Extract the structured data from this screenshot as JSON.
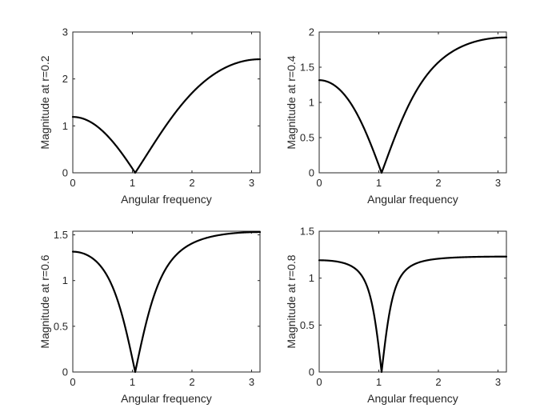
{
  "chart_data": [
    {
      "type": "line",
      "r": 0.2,
      "xlabel": "Angular frequency",
      "ylabel": "Magnitude at r=0.2",
      "xlim": [
        0,
        3.14159
      ],
      "ylim": [
        0,
        3
      ],
      "xticks": [
        0,
        1,
        2,
        3
      ],
      "yticks": [
        0,
        1,
        2,
        3
      ],
      "xtick_labels": [
        "0",
        "1",
        "2",
        "3"
      ],
      "ytick_labels": [
        "0",
        "1",
        "2",
        "3"
      ],
      "grid": false
    },
    {
      "type": "line",
      "r": 0.4,
      "xlabel": "Angular frequency",
      "ylabel": "Magnitude at r=0.4",
      "xlim": [
        0,
        3.14159
      ],
      "ylim": [
        0,
        2
      ],
      "xticks": [
        0,
        1,
        2,
        3
      ],
      "yticks": [
        0,
        0.5,
        1,
        1.5,
        2
      ],
      "xtick_labels": [
        "0",
        "1",
        "2",
        "3"
      ],
      "ytick_labels": [
        "0",
        "0.5",
        "1",
        "1.5",
        "2"
      ],
      "grid": false
    },
    {
      "type": "line",
      "r": 0.6,
      "xlabel": "Angular frequency",
      "ylabel": "Magnitude at r=0.6",
      "xlim": [
        0,
        3.14159
      ],
      "ylim": [
        0,
        1.54
      ],
      "xticks": [
        0,
        1,
        2,
        3
      ],
      "yticks": [
        0,
        0.5,
        1,
        1.5
      ],
      "xtick_labels": [
        "0",
        "1",
        "2",
        "3"
      ],
      "ytick_labels": [
        "0",
        "0.5",
        "1",
        "1.5"
      ],
      "grid": false
    },
    {
      "type": "line",
      "r": 0.8,
      "xlabel": "Angular frequency",
      "ylabel": "Magnitude at r=0.8",
      "xlim": [
        0,
        3.14159
      ],
      "ylim": [
        0,
        1.5
      ],
      "xticks": [
        0,
        1,
        2,
        3
      ],
      "yticks": [
        0,
        0.5,
        1,
        1.5
      ],
      "xtick_labels": [
        "0",
        "1",
        "2",
        "3"
      ],
      "ytick_labels": [
        "0",
        "0.5",
        "1",
        "1.5"
      ],
      "grid": false
    }
  ],
  "colors": {
    "line": "#000000",
    "axes": "#262626",
    "background": "#ffffff"
  }
}
